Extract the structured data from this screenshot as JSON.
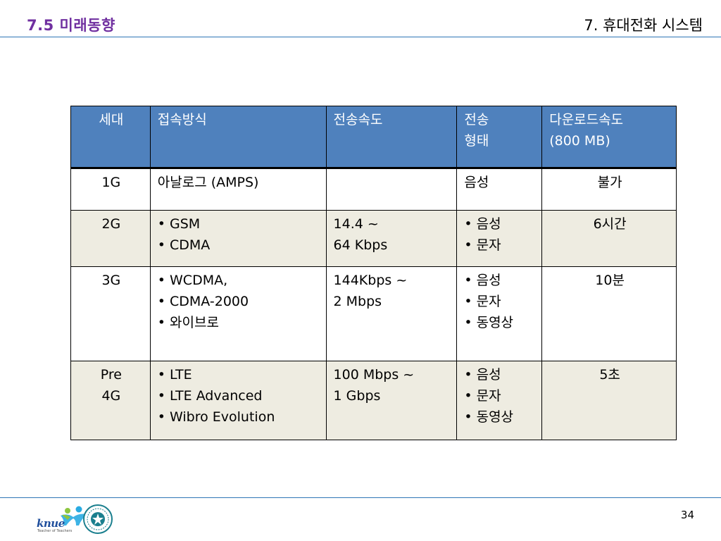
{
  "header": {
    "slide_title": "7.5 미래동향",
    "chapter_title": "7. 휴대전화 시스템"
  },
  "table": {
    "headers": [
      "세대",
      "접속방식",
      "전송속도",
      [
        "전송",
        "형태"
      ],
      [
        "다운로드속도",
        "(800 MB)"
      ]
    ],
    "rows": [
      {
        "gen": [
          "1G"
        ],
        "access": [
          "아날로그 (AMPS)"
        ],
        "speed": [],
        "type": [
          "음성"
        ],
        "download": "불가"
      },
      {
        "gen": [
          "2G"
        ],
        "access": [
          "GSM",
          "CDMA"
        ],
        "speed": [
          "14.4 ~",
          "64 Kbps"
        ],
        "type": [
          "음성",
          "문자"
        ],
        "download": "6시간"
      },
      {
        "gen": [
          "3G"
        ],
        "access": [
          "WCDMA,",
          "CDMA-2000",
          "와이브로"
        ],
        "speed": [
          "144Kbps ~",
          "2 Mbps"
        ],
        "type": [
          "음성",
          "문자",
          "동영상"
        ],
        "download": "10분"
      },
      {
        "gen": [
          "Pre",
          "4G"
        ],
        "access": [
          "LTE",
          "LTE Advanced",
          "Wibro Evolution"
        ],
        "speed": [
          "100 Mbps ~",
          "1 Gbps"
        ],
        "type": [
          "음성",
          "문자",
          "동영상"
        ],
        "download": "5초"
      }
    ]
  },
  "footer": {
    "logo_text": "knue",
    "logo_subtext": "Teacher of Teachers",
    "page_number": "34"
  },
  "colors": {
    "title": "#7030a0",
    "rule": "#2e75b6",
    "header_bg": "#4f81bd",
    "alt_row_bg": "#eeece1"
  }
}
